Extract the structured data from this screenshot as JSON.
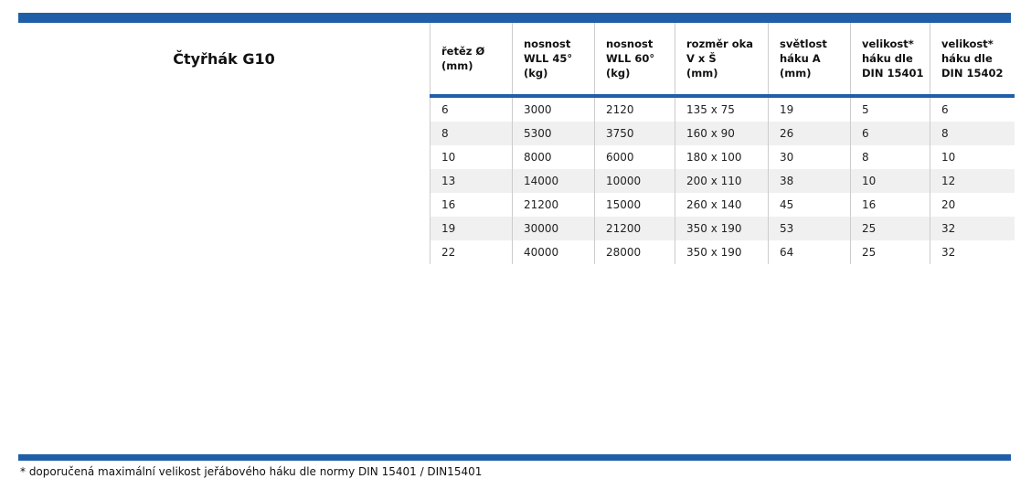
{
  "title": "Čtyřhák G10",
  "colors": {
    "accent_blue": "#1f5fa8",
    "row_alt_background": "#f0f0f0",
    "grid_line": "#cccccc"
  },
  "table": {
    "columns": [
      {
        "label": "řetěz Ø\n(mm)"
      },
      {
        "label": "nosnost\nWLL 45°\n(kg)"
      },
      {
        "label": "nosnost\nWLL 60°\n(kg)"
      },
      {
        "label": "rozměr oka\nV x Š\n(mm)"
      },
      {
        "label": "světlost\nháku A\n(mm)"
      },
      {
        "label": "velikost*\nháku dle\nDIN 15401"
      },
      {
        "label": "velikost*\nháku dle\nDIN 15402"
      }
    ],
    "rows": [
      [
        "6",
        "3000",
        "2120",
        "135 x 75",
        "19",
        "5",
        "6"
      ],
      [
        "8",
        "5300",
        "3750",
        "160 x 90",
        "26",
        "6",
        "8"
      ],
      [
        "10",
        "8000",
        "6000",
        "180 x 100",
        "30",
        "8",
        "10"
      ],
      [
        "13",
        "14000",
        "10000",
        "200 x 110",
        "38",
        "10",
        "12"
      ],
      [
        "16",
        "21200",
        "15000",
        "260 x 140",
        "45",
        "16",
        "20"
      ],
      [
        "19",
        "30000",
        "21200",
        "350 x 190",
        "53",
        "25",
        "32"
      ],
      [
        "22",
        "40000",
        "28000",
        "350 x 190",
        "64",
        "25",
        "32"
      ]
    ]
  },
  "footnote": "* doporučená maximální velikost jeřábového háku dle normy DIN 15401 / DIN15401"
}
